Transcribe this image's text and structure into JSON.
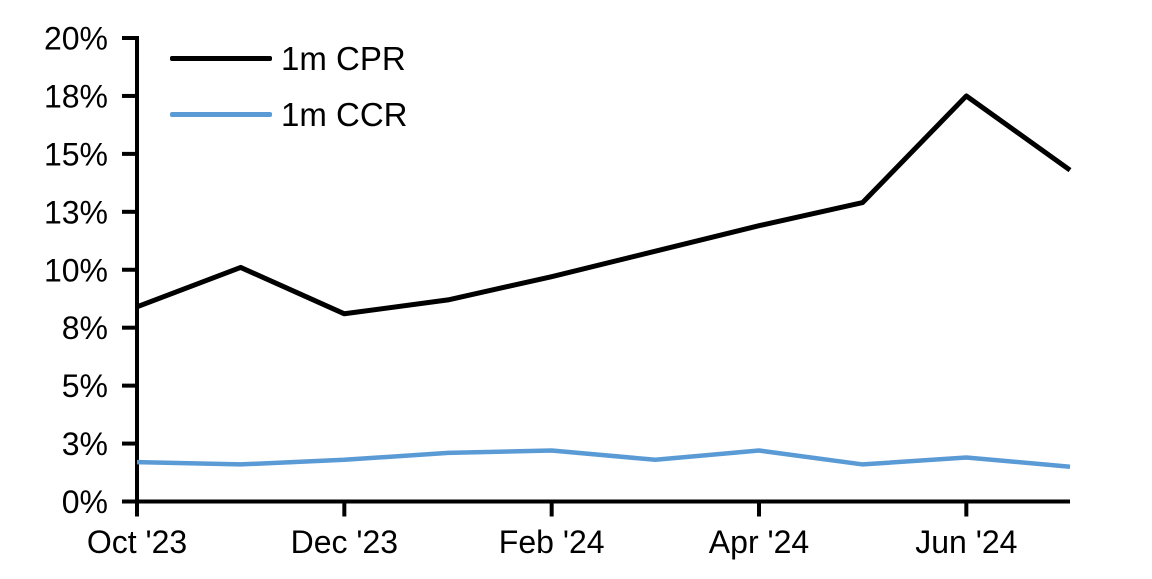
{
  "chart_data": {
    "type": "line",
    "x": [
      "Oct '23",
      "Nov '23",
      "Dec '23",
      "Jan '24",
      "Feb '24",
      "Mar '24",
      "Apr '24",
      "May '24",
      "Jun '24",
      "Jul '24"
    ],
    "x_tick_labels": [
      "Oct '23",
      "Dec '23",
      "Feb '24",
      "Apr '24",
      "Jun '24"
    ],
    "x_tick_positions": [
      0,
      2,
      4,
      6,
      8
    ],
    "y_ticks": [
      0,
      2.5,
      5,
      7.5,
      10,
      12.5,
      15,
      17.5,
      20
    ],
    "y_tick_labels": [
      "0%",
      "3%",
      "5%",
      "8%",
      "10%",
      "13%",
      "15%",
      "18%",
      "20%"
    ],
    "ylim": [
      0,
      20
    ],
    "grid": false,
    "legend_position": "top-left-inside",
    "series": [
      {
        "name": "1m CPR",
        "color": "#000000",
        "values": [
          8.4,
          10.1,
          8.1,
          8.7,
          9.7,
          10.8,
          11.9,
          12.9,
          17.5,
          14.3
        ]
      },
      {
        "name": "1m CCR",
        "color": "#5B9BD5",
        "values": [
          1.7,
          1.6,
          1.8,
          2.1,
          2.2,
          1.8,
          2.2,
          1.6,
          1.9,
          1.5
        ]
      }
    ],
    "axis_color": "#000000"
  }
}
